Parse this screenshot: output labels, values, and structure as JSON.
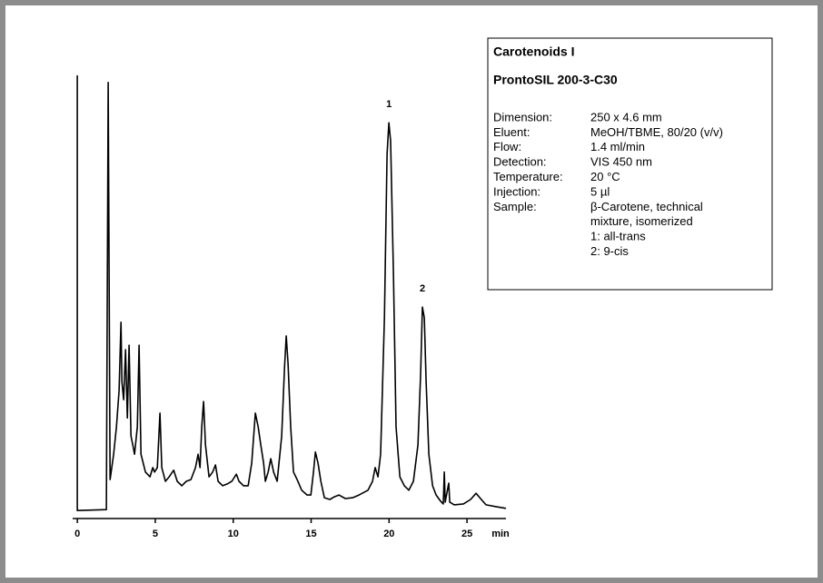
{
  "chart_data": {
    "type": "line",
    "color": "#000000",
    "x_label": "min",
    "xlim": [
      -0.3,
      27.5
    ],
    "xticks": [
      0,
      5,
      10,
      15,
      20,
      25
    ],
    "ylim": [
      0,
      100
    ],
    "x": [
      0,
      0,
      1.86,
      1.98,
      2.1,
      2.33,
      2.51,
      2.68,
      2.8,
      2.86,
      2.97,
      3.09,
      3.21,
      3.32,
      3.44,
      3.56,
      3.67,
      3.85,
      3.96,
      4.08,
      4.37,
      4.66,
      4.84,
      4.95,
      5.13,
      5.3,
      5.42,
      5.65,
      5.89,
      6.18,
      6.41,
      6.7,
      6.99,
      7.29,
      7.58,
      7.75,
      7.87,
      7.98,
      8.1,
      8.22,
      8.45,
      8.68,
      8.86,
      9.03,
      9.32,
      9.62,
      9.91,
      10.2,
      10.37,
      10.66,
      10.96,
      11.19,
      11.42,
      11.6,
      11.77,
      11.95,
      12.06,
      12.24,
      12.41,
      12.59,
      12.82,
      13.11,
      13.29,
      13.4,
      13.52,
      13.69,
      13.87,
      14.1,
      14.39,
      14.74,
      14.98,
      15.15,
      15.27,
      15.44,
      15.62,
      15.85,
      16.2,
      16.49,
      16.78,
      17.19,
      17.66,
      18.07,
      18.65,
      18.94,
      19.11,
      19.29,
      19.46,
      19.7,
      19.87,
      19.99,
      20.1,
      20.28,
      20.45,
      20.69,
      20.98,
      21.27,
      21.56,
      21.85,
      22.03,
      22.14,
      22.26,
      22.38,
      22.55,
      22.79,
      23.02,
      23.31,
      23.48,
      23.54,
      23.6,
      23.83,
      23.89,
      24.18,
      24.77,
      25.23,
      25.58,
      25.82,
      26.22,
      26.81,
      27.5
    ],
    "values": [
      100,
      1.8,
      2.0,
      98.4,
      8.8,
      14.5,
      20.7,
      28.9,
      44.3,
      30.9,
      26.8,
      38.1,
      22.7,
      39.1,
      18.6,
      16.6,
      14.5,
      20.7,
      39.1,
      14.5,
      10.5,
      9.4,
      11.5,
      10.5,
      11.5,
      23.8,
      11.5,
      8.4,
      9.4,
      10.9,
      8.4,
      7.4,
      8.4,
      8.8,
      11.5,
      14.5,
      11.5,
      20.7,
      26.4,
      16.6,
      9.4,
      10.5,
      12.1,
      8.4,
      7.4,
      7.8,
      8.4,
      10.0,
      8.4,
      7.4,
      7.4,
      12.5,
      23.8,
      20.7,
      16.6,
      12.5,
      8.4,
      10.5,
      13.5,
      10.5,
      8.4,
      18.6,
      34.0,
      41.2,
      35.0,
      20.7,
      10.5,
      8.8,
      6.4,
      5.3,
      5.3,
      10.5,
      15.0,
      12.5,
      8.4,
      4.7,
      4.3,
      4.9,
      5.3,
      4.5,
      4.7,
      5.3,
      6.4,
      8.4,
      11.5,
      9.4,
      14.5,
      45.3,
      82.2,
      89.3,
      85.2,
      55.5,
      20.7,
      9.4,
      7.4,
      6.4,
      8.4,
      16.6,
      33.0,
      47.7,
      45.3,
      30.9,
      14.5,
      7.4,
      5.3,
      3.9,
      3.3,
      10.5,
      3.7,
      8.0,
      3.7,
      3.1,
      3.3,
      4.3,
      5.7,
      4.7,
      3.1,
      2.7,
      2.3
    ],
    "annotations": [
      {
        "text": "1",
        "x": 19.99
      },
      {
        "text": "2",
        "x": 22.14
      }
    ],
    "info": {
      "title": "Carotenoids I",
      "subtitle": "ProntoSIL 200-3-C30",
      "rows": [
        [
          "Dimension:",
          "250 x 4.6 mm"
        ],
        [
          "Eluent:",
          "MeOH/TBME, 80/20 (v/v)"
        ],
        [
          "Flow:",
          "1.4 ml/min"
        ],
        [
          "Detection:",
          "VIS 450 nm"
        ],
        [
          "Temperature:",
          "20 °C"
        ],
        [
          "Injection:",
          "5 µl"
        ],
        [
          "Sample:",
          "β-Carotene, technical"
        ],
        [
          "",
          "mixture, isomerized"
        ],
        [
          "",
          "1: all-trans"
        ],
        [
          "",
          "2: 9-cis"
        ]
      ]
    }
  }
}
